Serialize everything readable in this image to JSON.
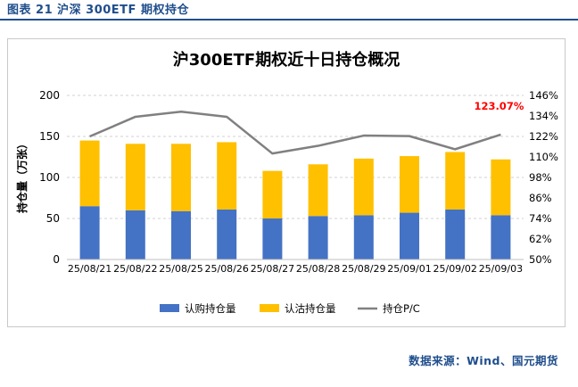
{
  "caption": "图表 21 沪深 300ETF 期权持仓",
  "source": "数据来源：Wind、国元期货",
  "chart_data": {
    "type": "bar",
    "title": "沪300ETF期权近十日持仓概况",
    "ylabel": "持仓量（万张）",
    "ylim": [
      0,
      200
    ],
    "y_ticks": [
      "0",
      "50",
      "100",
      "150",
      "200"
    ],
    "y2lim": [
      0.5,
      1.46
    ],
    "y2_ticks": [
      "50%",
      "62%",
      "74%",
      "86%",
      "98%",
      "110%",
      "122%",
      "134%",
      "146%"
    ],
    "categories": [
      "25/08/21",
      "25/08/22",
      "25/08/25",
      "25/08/26",
      "25/08/27",
      "25/08/28",
      "25/08/29",
      "25/09/01",
      "25/09/02",
      "25/09/03"
    ],
    "series": [
      {
        "name": "认购持仓量",
        "type": "bar",
        "stack": "holdings",
        "color": "#4472c4",
        "values": [
          65,
          60,
          59,
          61,
          50,
          53,
          54,
          57,
          61,
          54
        ]
      },
      {
        "name": "认沽持仓量",
        "type": "bar",
        "stack": "holdings",
        "color": "#ffc000",
        "values": [
          80,
          81,
          82,
          82,
          58,
          63,
          69,
          69,
          70,
          68
        ]
      },
      {
        "name": "持仓P/C",
        "type": "line",
        "axis": "right",
        "color": "#808080",
        "values": [
          1.22,
          1.335,
          1.365,
          1.335,
          1.12,
          1.165,
          1.225,
          1.222,
          1.145,
          1.2307
        ]
      }
    ],
    "annotation": {
      "label": "123.07%",
      "index": 9,
      "series": "持仓P/C",
      "color": "#ff0000"
    },
    "grid": "horizontal-dashed",
    "legend": "bottom"
  }
}
